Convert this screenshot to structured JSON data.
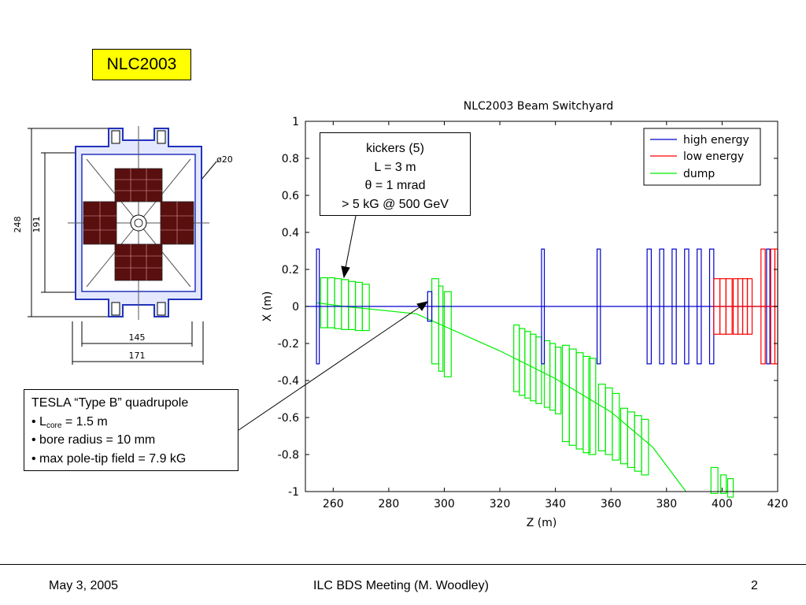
{
  "slide": {
    "title": "NLC2003",
    "footer_left": "May 3, 2005",
    "footer_center": "ILC BDS Meeting (M. Woodley)",
    "footer_right": "2"
  },
  "drawing": {
    "dim_248": "248",
    "dim_191": "191",
    "dim_145": "145",
    "dim_171": "171",
    "dim_phi20": "ø20"
  },
  "kickers_callout": {
    "line1": "kickers (5)",
    "line2": "L = 3 m",
    "line3": "θ = 1 mrad",
    "line4": "> 5 kG @ 500 GeV"
  },
  "quad_callout": {
    "line1": "TESLA “Type B” quadrupole",
    "line2_prefix": "• L",
    "line2_sub": "core",
    "line2_suffix": " = 1.5 m",
    "line3": "• bore radius = 10 mm",
    "line4": "• max pole-tip field = 7.9 kG"
  },
  "chart_data": {
    "type": "line",
    "title": "NLC2003 Beam Switchyard",
    "xlabel": "Z (m)",
    "ylabel": "X (m)",
    "xlim": [
      250,
      420
    ],
    "ylim": [
      -1,
      1
    ],
    "xticks": [
      260,
      280,
      300,
      320,
      340,
      360,
      380,
      400,
      420
    ],
    "yticks": [
      -1,
      -0.8,
      -0.6,
      -0.4,
      -0.2,
      0,
      0.2,
      0.4,
      0.6,
      0.8,
      1
    ],
    "legend_position": "top-right",
    "grid": false,
    "series": [
      {
        "name": "high energy",
        "color": "#0000cc",
        "line": [
          [
            250,
            0
          ],
          [
            420,
            0
          ]
        ],
        "magnets": [
          {
            "z": 254.0,
            "w": 1.0,
            "x": 0,
            "h": 0.31
          },
          {
            "z": 294.0,
            "w": 1.5,
            "x": 0,
            "h": 0.08
          },
          {
            "z": 335.0,
            "w": 1.0,
            "x": 0,
            "h": 0.31
          },
          {
            "z": 355.0,
            "w": 1.2,
            "x": 0,
            "h": 0.31
          },
          {
            "z": 373.0,
            "w": 1.5,
            "x": 0,
            "h": 0.31
          },
          {
            "z": 377.5,
            "w": 1.5,
            "x": 0,
            "h": 0.31
          },
          {
            "z": 382.0,
            "w": 1.5,
            "x": 0,
            "h": 0.31
          },
          {
            "z": 386.5,
            "w": 1.5,
            "x": 0,
            "h": 0.31
          },
          {
            "z": 391.0,
            "w": 1.5,
            "x": 0,
            "h": 0.31
          },
          {
            "z": 395.5,
            "w": 1.5,
            "x": 0,
            "h": 0.31
          },
          {
            "z": 416.0,
            "w": 1.2,
            "x": 0,
            "h": 0.31
          }
        ]
      },
      {
        "name": "low energy",
        "color": "#ff0000",
        "line": [
          [
            397,
            0
          ],
          [
            420,
            0
          ]
        ],
        "magnets": [
          {
            "z": 397.0,
            "w": 2.2,
            "x": 0,
            "h": 0.15
          },
          {
            "z": 399.2,
            "w": 2.2,
            "x": 0,
            "h": 0.15
          },
          {
            "z": 401.4,
            "w": 2.2,
            "x": 0,
            "h": 0.15
          },
          {
            "z": 404.0,
            "w": 1.7,
            "x": 0,
            "h": 0.15
          },
          {
            "z": 405.7,
            "w": 1.7,
            "x": 0,
            "h": 0.15
          },
          {
            "z": 407.4,
            "w": 1.7,
            "x": 0,
            "h": 0.15
          },
          {
            "z": 409.1,
            "w": 1.7,
            "x": 0,
            "h": 0.15
          },
          {
            "z": 414.0,
            "w": 1.5,
            "x": 0,
            "h": 0.31
          },
          {
            "z": 417.5,
            "w": 1.5,
            "x": 0,
            "h": 0.31
          },
          {
            "z": 419.0,
            "w": 1.0,
            "x": 0,
            "h": 0.31
          }
        ]
      },
      {
        "name": "dump",
        "color": "#00ee00",
        "line": [
          [
            254,
            0.02
          ],
          [
            264,
            0.0
          ],
          [
            290,
            -0.04
          ],
          [
            320,
            -0.24
          ],
          [
            340,
            -0.39
          ],
          [
            360,
            -0.57
          ],
          [
            375,
            -0.76
          ],
          [
            387,
            -1.0
          ]
        ],
        "magnets": [
          {
            "z": 255.5,
            "w": 2.5,
            "x": 0.02,
            "h": 0.135
          },
          {
            "z": 258.0,
            "w": 2.5,
            "x": 0.02,
            "h": 0.135
          },
          {
            "z": 260.5,
            "w": 2.5,
            "x": 0.015,
            "h": 0.135
          },
          {
            "z": 263.0,
            "w": 2.5,
            "x": 0.01,
            "h": 0.135
          },
          {
            "z": 265.5,
            "w": 2.5,
            "x": 0.005,
            "h": 0.13
          },
          {
            "z": 268.0,
            "w": 2.5,
            "x": 0.0,
            "h": 0.13
          },
          {
            "z": 270.5,
            "w": 2.5,
            "x": -0.005,
            "h": 0.125
          },
          {
            "z": 295.5,
            "w": 2.5,
            "x": -0.08,
            "h": 0.23
          },
          {
            "z": 298.0,
            "w": 1.5,
            "x": -0.12,
            "h": 0.23
          },
          {
            "z": 300.0,
            "w": 2.5,
            "x": -0.15,
            "h": 0.23
          },
          {
            "z": 325.0,
            "w": 2.0,
            "x": -0.28,
            "h": 0.18
          },
          {
            "z": 327.0,
            "w": 2.0,
            "x": -0.3,
            "h": 0.18
          },
          {
            "z": 329.0,
            "w": 2.0,
            "x": -0.315,
            "h": 0.18
          },
          {
            "z": 331.0,
            "w": 2.0,
            "x": -0.33,
            "h": 0.18
          },
          {
            "z": 333.0,
            "w": 2.0,
            "x": -0.345,
            "h": 0.18
          },
          {
            "z": 336.0,
            "w": 2.0,
            "x": -0.365,
            "h": 0.18
          },
          {
            "z": 338.0,
            "w": 2.0,
            "x": -0.38,
            "h": 0.18
          },
          {
            "z": 340.0,
            "w": 2.0,
            "x": -0.4,
            "h": 0.18
          },
          {
            "z": 342.5,
            "w": 2.5,
            "x": -0.47,
            "h": 0.26
          },
          {
            "z": 345.0,
            "w": 2.5,
            "x": -0.49,
            "h": 0.26
          },
          {
            "z": 347.5,
            "w": 2.5,
            "x": -0.51,
            "h": 0.26
          },
          {
            "z": 350.0,
            "w": 2.5,
            "x": -0.53,
            "h": 0.26
          },
          {
            "z": 352.0,
            "w": 2.5,
            "x": -0.54,
            "h": 0.26
          },
          {
            "z": 355.5,
            "w": 2.5,
            "x": -0.6,
            "h": 0.18
          },
          {
            "z": 358.0,
            "w": 2.5,
            "x": -0.62,
            "h": 0.18
          },
          {
            "z": 360.5,
            "w": 2.5,
            "x": -0.65,
            "h": 0.18
          },
          {
            "z": 363.5,
            "w": 2.5,
            "x": -0.7,
            "h": 0.15
          },
          {
            "z": 366.0,
            "w": 2.5,
            "x": -0.72,
            "h": 0.15
          },
          {
            "z": 368.5,
            "w": 2.5,
            "x": -0.74,
            "h": 0.15
          },
          {
            "z": 371.0,
            "w": 2.5,
            "x": -0.76,
            "h": 0.15
          },
          {
            "z": 396.0,
            "w": 2.5,
            "x": -0.94,
            "h": 0.07
          },
          {
            "z": 399.5,
            "w": 2.0,
            "x": -0.96,
            "h": 0.05
          },
          {
            "z": 402.0,
            "w": 2.0,
            "x": -0.98,
            "h": 0.05
          }
        ]
      }
    ]
  }
}
